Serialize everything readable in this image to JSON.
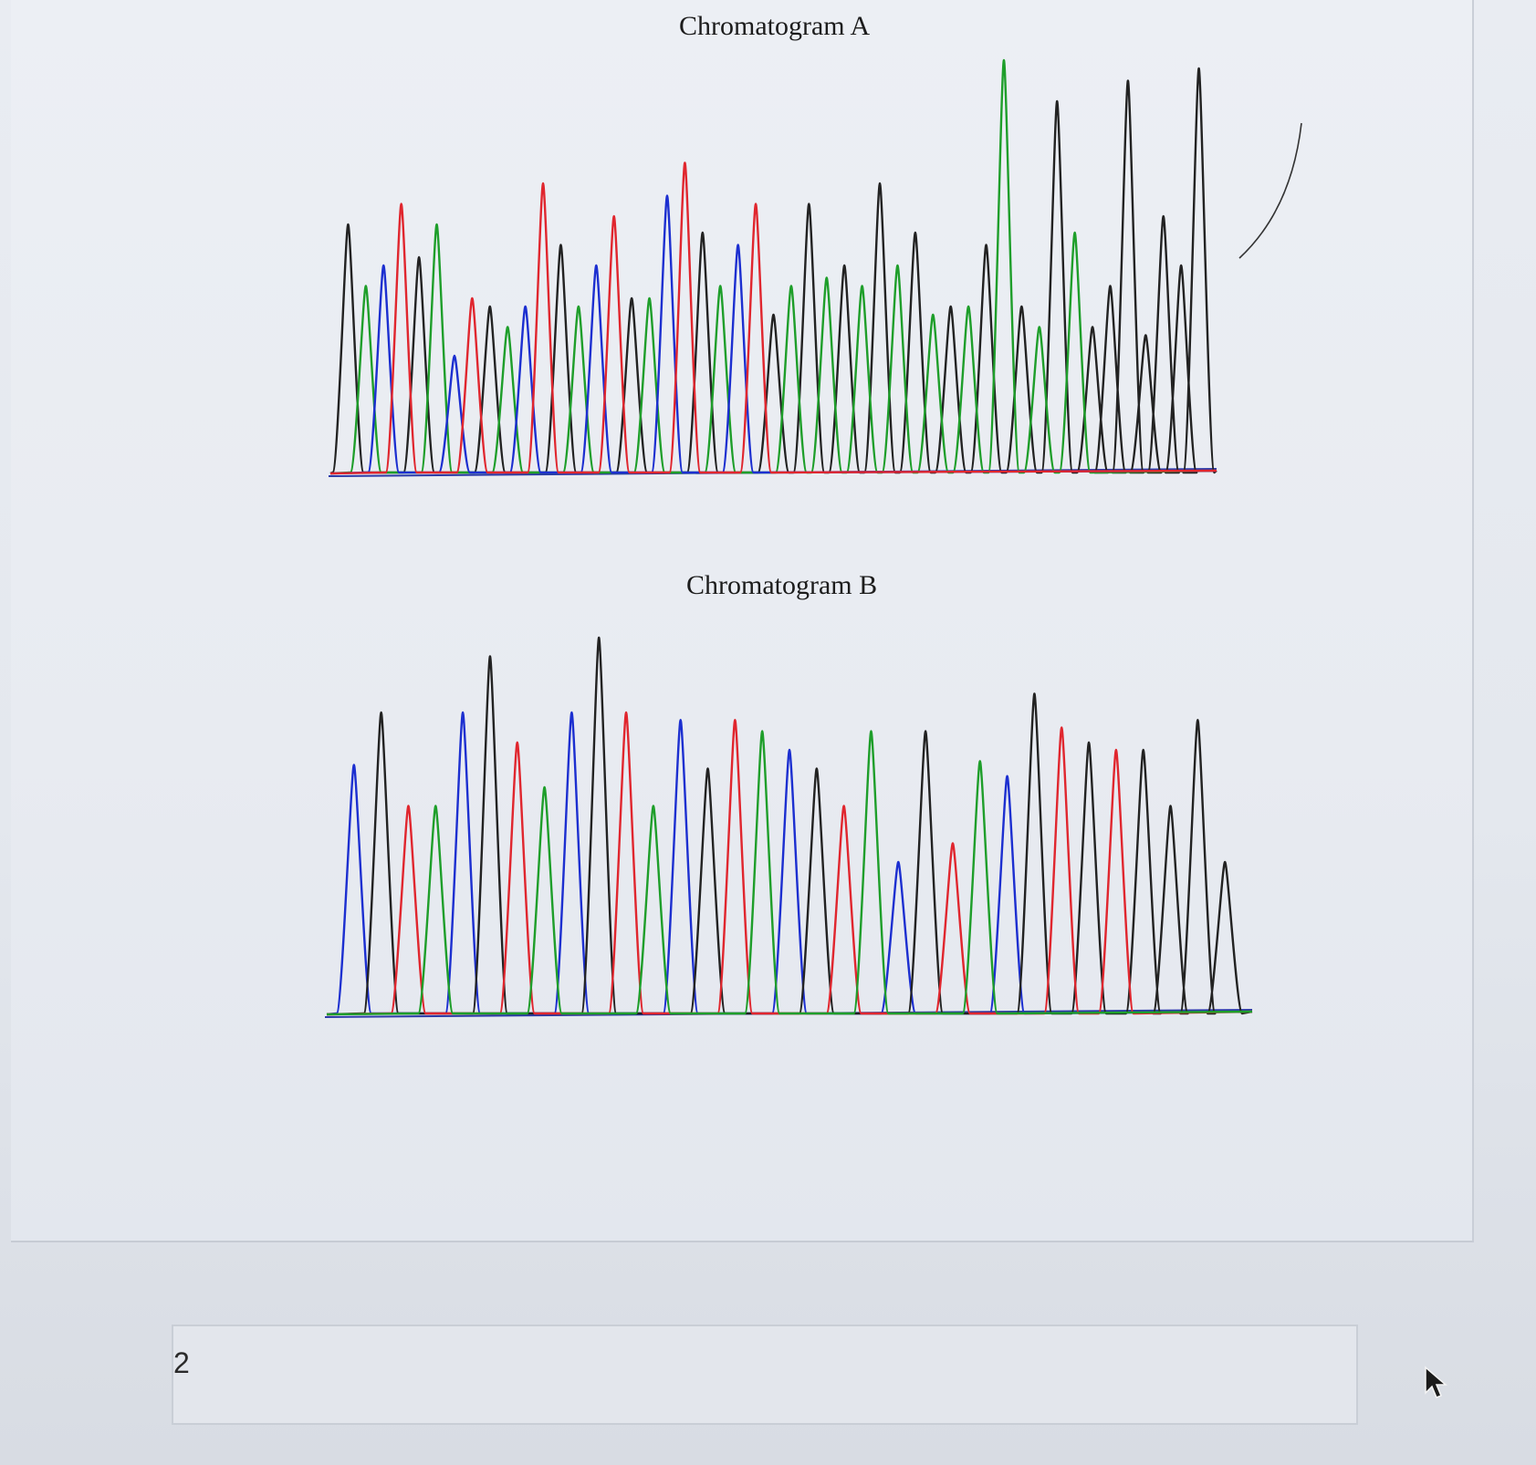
{
  "charts": {
    "a": {
      "title": "Chromatogram A"
    },
    "b": {
      "title": "Chromatogram B"
    }
  },
  "answer": {
    "value": "2"
  },
  "colors": {
    "A": "#1e9e2a",
    "C": "#1c2fd0",
    "G": "#222222",
    "T": "#e0262e",
    "baseline": "#2b3aa8"
  },
  "chart_data": [
    {
      "type": "line",
      "title": "Chromatogram A",
      "series": [
        {
          "name": "",
          "color": "black",
          "values": [
            0.6,
            0.52,
            0.4,
            0.55,
            0.42,
            0.58,
            0.38,
            0.65,
            0.5,
            0.7,
            0.58,
            0.4,
            0.55,
            0.4,
            0.9,
            0.35,
            0.45,
            0.95,
            0.33,
            0.62,
            0.5,
            0.98
          ]
        },
        {
          "name": "",
          "color": "green",
          "values": [
            0.45,
            0.6,
            0.35,
            0.4,
            0.42,
            0.45,
            0.45,
            0.47,
            0.45,
            0.5,
            0.38,
            0.4,
            1.0,
            0.35,
            0.58
          ]
        },
        {
          "name": "",
          "color": "blue",
          "values": [
            0.5,
            0.28,
            0.4,
            0.5,
            0.67,
            0.55
          ]
        },
        {
          "name": "",
          "color": "red",
          "values": [
            0.65,
            0.42,
            0.7,
            0.62,
            0.75,
            0.65
          ]
        }
      ]
    },
    {
      "type": "line",
      "title": "Chromatogram B",
      "series": [
        {
          "name": "",
          "color": "blue",
          "values": [
            0.66,
            0.8,
            0.8,
            0.78,
            0.7,
            0.4,
            0.63
          ]
        },
        {
          "name": "",
          "color": "black",
          "values": [
            0.8,
            0.95,
            1.0,
            0.65,
            0.65,
            0.75,
            0.85,
            0.72,
            0.7,
            0.55,
            0.78,
            0.4
          ]
        },
        {
          "name": "",
          "color": "red",
          "values": [
            0.55,
            0.72,
            0.8,
            0.78,
            0.55,
            0.45,
            0.76,
            0.7
          ]
        },
        {
          "name": "",
          "color": "green",
          "values": [
            0.55,
            0.6,
            0.55,
            0.75,
            0.75,
            0.67
          ]
        }
      ]
    }
  ]
}
